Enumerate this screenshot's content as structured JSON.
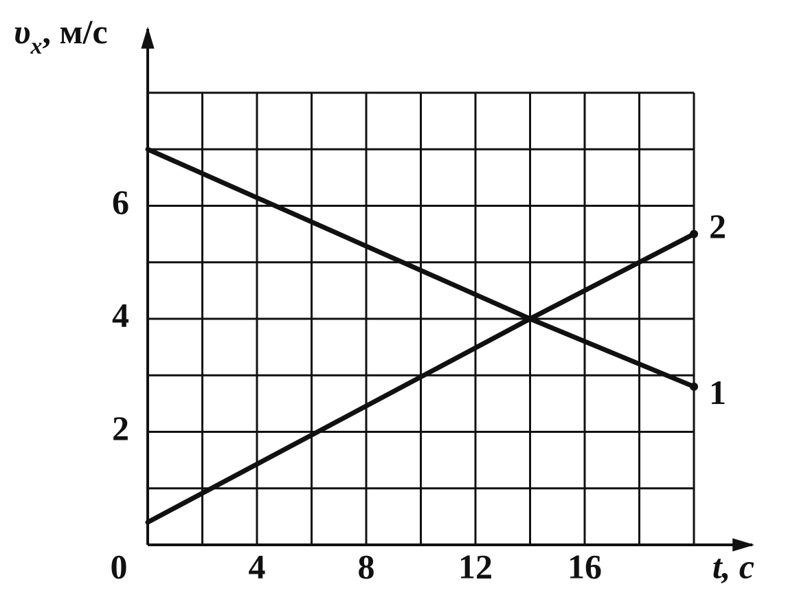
{
  "chart_data": {
    "type": "line",
    "ylabel": {
      "symbol": "υ",
      "subscript": "x",
      "unit": ", м/с"
    },
    "xlabel": "t, с",
    "x": [
      0,
      14,
      20
    ],
    "series": [
      {
        "name": "1",
        "color": "#111111",
        "values": [
          7,
          4,
          2.8
        ]
      },
      {
        "name": "2",
        "color": "#111111",
        "values": [
          0.4,
          4,
          5.5
        ]
      }
    ],
    "xlim": [
      0,
      20
    ],
    "ylim": [
      0,
      8
    ],
    "xticks": [
      0,
      {
        "value": 2,
        "label": null
      },
      4,
      {
        "value": 6,
        "label": null
      },
      8,
      {
        "value": 10,
        "label": null
      },
      12,
      {
        "value": 14,
        "label": null
      },
      16,
      {
        "value": 18,
        "label": null
      },
      {
        "value": 20,
        "label": null
      }
    ],
    "yticks": [
      {
        "value": 0,
        "label": null
      },
      {
        "value": 1,
        "label": null
      },
      2,
      {
        "value": 3,
        "label": null
      },
      4,
      {
        "value": 5,
        "label": null
      },
      6,
      {
        "value": 7,
        "label": null
      },
      {
        "value": 8,
        "label": null
      }
    ],
    "grid": true
  }
}
